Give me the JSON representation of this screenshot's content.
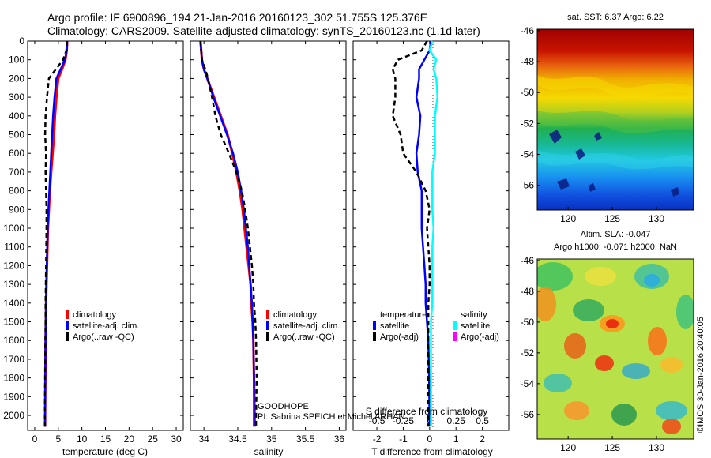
{
  "header": {
    "line1": "Argo profile: IF 6900896_194 21-Jan-2016 20160123_302 51.755S 125.376E",
    "line2": "Climatology: CARS2009. Satellite-adjusted climatology: synTS_20160123.nc (1.1d later)"
  },
  "colors": {
    "climatology": "#ff0000",
    "satellite": "#0000ff",
    "argo": "#000000",
    "sal_satellite": "#00ffff",
    "sal_argo": "#ff00ff"
  },
  "legend": {
    "climatology": "climatology",
    "satellite_adj": "satellite-adj. clim.",
    "argo_raw": "Argo(..raw -QC)",
    "temperature": "temperature",
    "salinity": "salinity",
    "satellite": "satellite",
    "argo_adj": "Argo(-adj)"
  },
  "annotations": {
    "goodhope": "GOODHOPE",
    "pi": "PI: Sabrina SPEICH et Michel ARHAN",
    "credit": "©IMOS 30-Jan-2016 20:40:05"
  },
  "map_titles": {
    "sst": "sat. SST: 6.37 Argo: 6.22",
    "sla_line1": "Altim. SLA: -0.047",
    "sla_line2": "Argo h1000: -0.071 h2000: NaN"
  },
  "chart_data": [
    {
      "type": "line",
      "panel": "temperature",
      "xlabel": "temperature (deg C)",
      "xticks": [
        0,
        5,
        10,
        15,
        20,
        25,
        30
      ],
      "xlim": [
        -1.5,
        31.5
      ],
      "yticks": [
        0,
        100,
        200,
        300,
        400,
        500,
        600,
        700,
        800,
        900,
        1000,
        1100,
        1200,
        1300,
        1400,
        1500,
        1600,
        1700,
        1800,
        1900,
        2000
      ],
      "ylim": [
        2080,
        0
      ],
      "series": [
        {
          "name": "climatology",
          "color": "#ff0000",
          "dash": "",
          "width": 3,
          "x": [
            6.9,
            6.8,
            6.5,
            5.8,
            5.0,
            4.6,
            4.3,
            4.1,
            3.8,
            3.5,
            3.2,
            3.0,
            2.8,
            2.7,
            2.6,
            2.5,
            2.4,
            2.35,
            2.3,
            2.25,
            2.2,
            2.2
          ],
          "y": [
            0,
            50,
            100,
            150,
            200,
            300,
            400,
            500,
            600,
            700,
            800,
            900,
            1000,
            1100,
            1200,
            1300,
            1400,
            1500,
            1600,
            1800,
            2000,
            2060
          ]
        },
        {
          "name": "satellite-adj. clim.",
          "color": "#0000ff",
          "dash": "",
          "width": 2.5,
          "x": [
            6.9,
            6.8,
            6.4,
            5.5,
            4.6,
            4.2,
            3.9,
            3.7,
            3.5,
            3.3,
            3.1,
            2.9,
            2.75,
            2.65,
            2.55,
            2.45,
            2.4,
            2.35,
            2.3,
            2.25,
            2.2,
            2.2
          ],
          "y": [
            0,
            50,
            100,
            150,
            200,
            300,
            400,
            500,
            600,
            700,
            800,
            900,
            1000,
            1100,
            1200,
            1300,
            1400,
            1500,
            1600,
            1800,
            2000,
            2060
          ]
        },
        {
          "name": "Argo(..raw -QC)",
          "color": "#000000",
          "dash": "6,4",
          "width": 2.5,
          "x": [
            6.8,
            6.7,
            6.0,
            4.5,
            3.0,
            2.6,
            2.3,
            2.2,
            2.4,
            2.3,
            2.4,
            2.5,
            2.5,
            2.45,
            2.4,
            2.35,
            2.3,
            2.3,
            2.25,
            2.2,
            2.15,
            2.15
          ],
          "y": [
            0,
            50,
            100,
            150,
            200,
            300,
            400,
            500,
            600,
            700,
            800,
            900,
            1000,
            1100,
            1200,
            1300,
            1400,
            1500,
            1600,
            1800,
            2000,
            2060
          ]
        }
      ]
    },
    {
      "type": "line",
      "panel": "salinity",
      "xlabel": "salinity",
      "xticks": [
        34,
        34.5,
        35,
        35.5,
        36
      ],
      "xlim": [
        33.8,
        36.1
      ],
      "ylim": [
        2080,
        0
      ],
      "series": [
        {
          "name": "climatology",
          "color": "#ff0000",
          "dash": "",
          "width": 3,
          "x": [
            33.95,
            33.96,
            33.97,
            34.0,
            34.05,
            34.15,
            34.25,
            34.35,
            34.42,
            34.48,
            34.53,
            34.57,
            34.6,
            34.63,
            34.66,
            34.69,
            34.7,
            34.72,
            34.73,
            34.74,
            34.75,
            34.75
          ],
          "y": [
            0,
            50,
            100,
            150,
            200,
            300,
            400,
            500,
            600,
            700,
            800,
            900,
            1000,
            1100,
            1200,
            1300,
            1400,
            1500,
            1600,
            1800,
            2000,
            2060
          ]
        },
        {
          "name": "satellite-adj. clim.",
          "color": "#0000ff",
          "dash": "",
          "width": 2.5,
          "x": [
            33.95,
            33.96,
            33.97,
            34.0,
            34.05,
            34.14,
            34.24,
            34.34,
            34.43,
            34.5,
            34.55,
            34.59,
            34.62,
            34.65,
            34.67,
            34.69,
            34.71,
            34.72,
            34.73,
            34.74,
            34.74,
            34.74
          ],
          "y": [
            0,
            50,
            100,
            150,
            200,
            300,
            400,
            500,
            600,
            700,
            800,
            900,
            1000,
            1100,
            1200,
            1300,
            1400,
            1500,
            1600,
            1800,
            2000,
            2060
          ]
        },
        {
          "name": "Argo(..raw -QC)",
          "color": "#000000",
          "dash": "6,4",
          "width": 2.5,
          "x": [
            33.95,
            33.96,
            33.97,
            34.02,
            34.06,
            34.12,
            34.17,
            34.25,
            34.37,
            34.48,
            34.56,
            34.61,
            34.65,
            34.68,
            34.71,
            34.73,
            34.74,
            34.76,
            34.77,
            34.78,
            34.77,
            34.77
          ],
          "y": [
            0,
            50,
            100,
            150,
            200,
            300,
            400,
            500,
            600,
            700,
            800,
            900,
            1000,
            1100,
            1200,
            1300,
            1400,
            1500,
            1600,
            1800,
            2000,
            2060
          ]
        }
      ]
    },
    {
      "type": "line",
      "panel": "difference",
      "xlabel": "T difference from climatology",
      "xlabel_top": "S difference from climatology",
      "xticks": [
        -2,
        -1,
        0,
        1,
        2
      ],
      "xticks_s": [
        -0.5,
        -0.25,
        0,
        0.25,
        0.5
      ],
      "xticks_s_labels": [
        "-0.5",
        "-0.25",
        "0",
        "0.25",
        "0.5"
      ],
      "xlim": [
        -2.9,
        3.0
      ],
      "ylim": [
        2080,
        0
      ],
      "series": [
        {
          "name": "temperature satellite",
          "color": "#0000ff",
          "dash": "",
          "width": 2.5,
          "x": [
            0.05,
            0.0,
            -0.2,
            -0.4,
            -0.4,
            -0.5,
            -0.35,
            -0.4,
            -0.5,
            -0.45,
            -0.3,
            -0.3,
            -0.3,
            -0.25,
            -0.2,
            -0.15,
            -0.15,
            -0.1,
            -0.05,
            -0.02,
            0.0
          ],
          "y": [
            0,
            50,
            100,
            150,
            200,
            300,
            400,
            500,
            600,
            700,
            800,
            900,
            1000,
            1100,
            1200,
            1300,
            1400,
            1500,
            1600,
            1800,
            2060
          ]
        },
        {
          "name": "temperature Argo(-adj)",
          "color": "#000000",
          "dash": "6,4",
          "width": 2.5,
          "x": [
            -0.1,
            -0.3,
            -1.2,
            -1.4,
            -1.3,
            -1.3,
            -1.4,
            -1.1,
            -1.0,
            -0.5,
            -0.15,
            0.0,
            -0.1,
            -0.05,
            0.0,
            0.0,
            -0.05,
            -0.05,
            -0.05,
            -0.05,
            -0.05
          ],
          "y": [
            0,
            50,
            100,
            150,
            200,
            300,
            400,
            500,
            600,
            700,
            800,
            900,
            1000,
            1100,
            1200,
            1300,
            1400,
            1500,
            1600,
            1800,
            2060
          ]
        },
        {
          "name": "salinity satellite",
          "color": "#00ffff",
          "dash": "",
          "width": 2.5,
          "x": [
            0.1,
            0.0,
            0.25,
            0.15,
            0.25,
            0.3,
            0.2,
            0.2,
            0.2,
            0.1,
            0.1,
            0.1,
            0.15,
            0.1,
            0.1,
            0.1,
            0.1,
            0.05,
            0.05,
            0.05,
            0.05
          ],
          "y": [
            0,
            50,
            100,
            150,
            200,
            300,
            400,
            500,
            600,
            700,
            800,
            900,
            1000,
            1100,
            1200,
            1300,
            1400,
            1500,
            1600,
            1800,
            2060
          ]
        }
      ]
    },
    {
      "type": "heatmap",
      "panel": "sst-map",
      "title": "sat. SST: 6.37 Argo: 6.22",
      "xticks": [
        120,
        125,
        130
      ],
      "yticks": [
        -46,
        -48,
        -50,
        -52,
        -54,
        -56
      ],
      "xlim": [
        116.5,
        134.2
      ],
      "ylim": [
        -57.6,
        -45.9
      ]
    },
    {
      "type": "heatmap",
      "panel": "sla-map",
      "title": "Altim. SLA: -0.047 / Argo h1000: -0.071 h2000: NaN",
      "xticks": [
        120,
        125,
        130
      ],
      "yticks": [
        -46,
        -48,
        -50,
        -52,
        -54,
        -56
      ],
      "xlim": [
        116.5,
        134.2
      ],
      "ylim": [
        -57.6,
        -45.9
      ]
    }
  ]
}
